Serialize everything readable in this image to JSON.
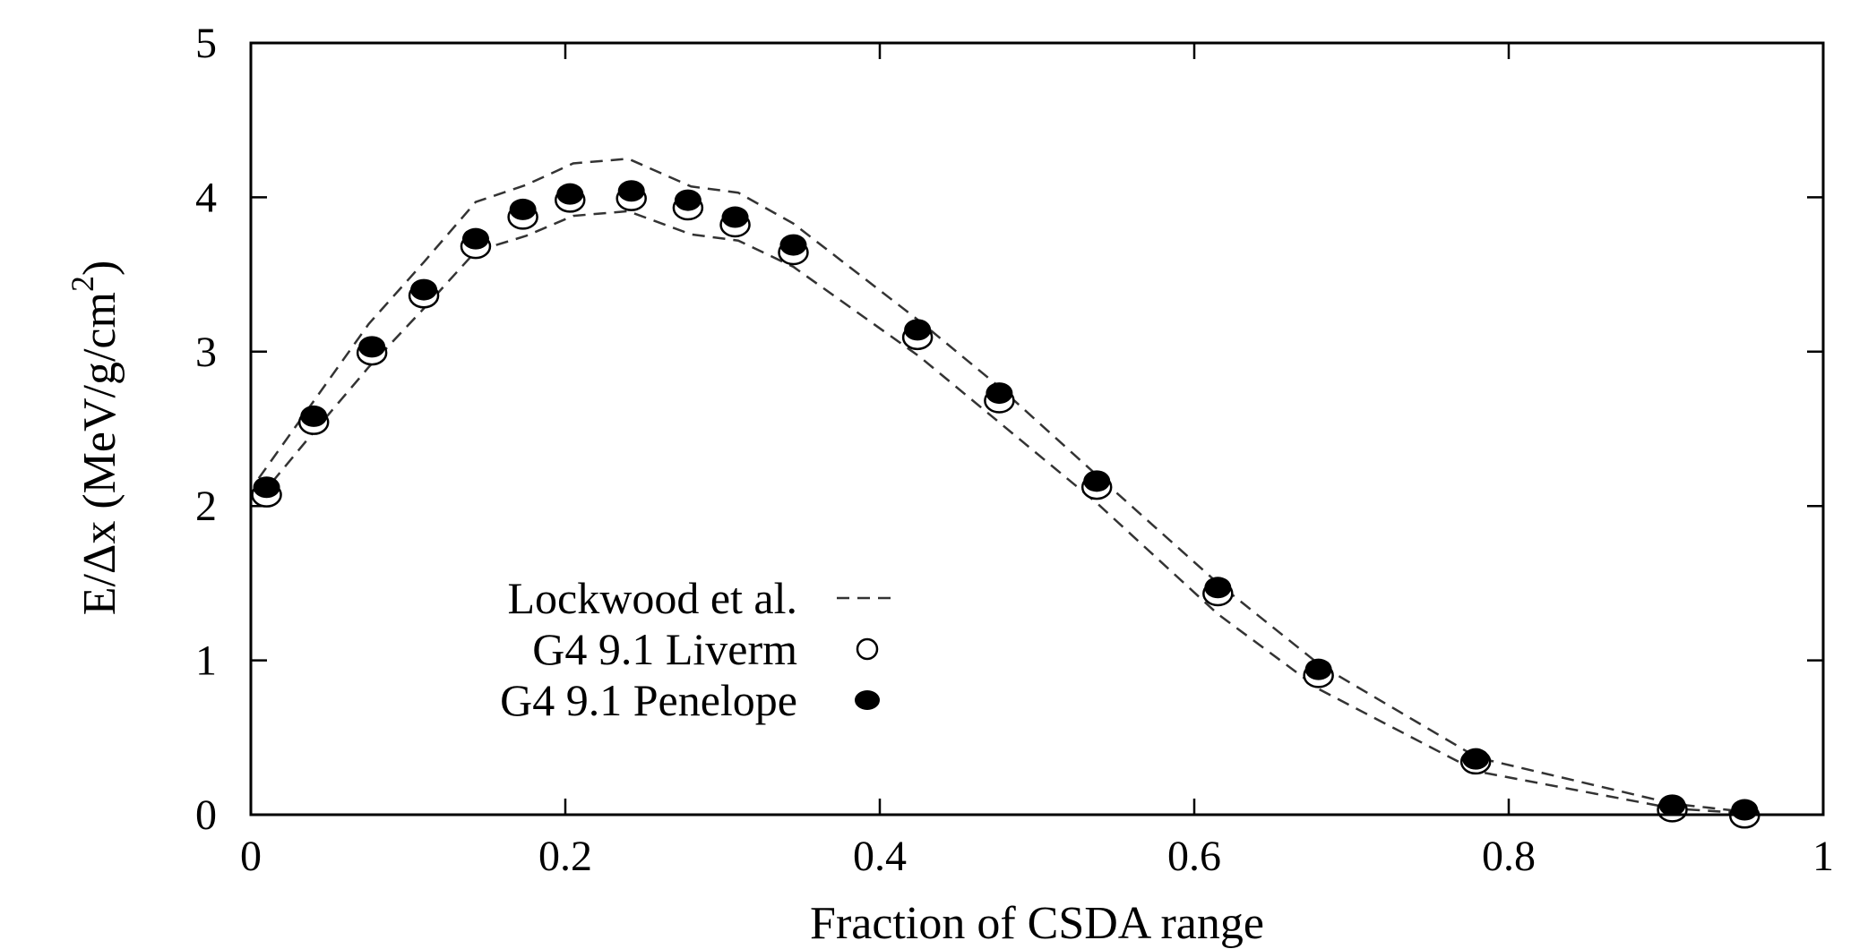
{
  "chart_data": {
    "type": "scatter",
    "xlabel": "Fraction of CSDA range",
    "ylabel_main": "E/Δx (MeV/g/cm",
    "ylabel_sup": "2",
    "ylabel_close": ")",
    "xlim": [
      0,
      1
    ],
    "ylim": [
      0,
      5
    ],
    "xticks": [
      0,
      0.2,
      0.4,
      0.6,
      0.8,
      1
    ],
    "xtick_labels": [
      "0",
      "0.2",
      "0.4",
      "0.6",
      "0.8",
      "1"
    ],
    "yticks": [
      0,
      1,
      2,
      3,
      4,
      5
    ],
    "ytick_labels": [
      "0",
      "1",
      "2",
      "3",
      "4",
      "5"
    ],
    "legend_position": "center-left",
    "series": [
      {
        "name": "Lockwood et al.",
        "style": "dashed-line",
        "color": "#333333",
        "upper": {
          "x": [
            0.005,
            0.04,
            0.075,
            0.11,
            0.143,
            0.175,
            0.205,
            0.24,
            0.28,
            0.31,
            0.345,
            0.425,
            0.475,
            0.538,
            0.615,
            0.68,
            0.78,
            0.905,
            0.95
          ],
          "y": [
            2.18,
            2.68,
            3.18,
            3.58,
            3.97,
            4.08,
            4.22,
            4.25,
            4.07,
            4.03,
            3.83,
            3.2,
            2.78,
            2.2,
            1.5,
            0.97,
            0.37,
            0.07,
            0.02
          ]
        },
        "lower": {
          "x": [
            0.005,
            0.04,
            0.075,
            0.11,
            0.143,
            0.175,
            0.205,
            0.24,
            0.28,
            0.31,
            0.345,
            0.425,
            0.475,
            0.538,
            0.615,
            0.68,
            0.78,
            0.905,
            0.95
          ],
          "y": [
            2.05,
            2.48,
            2.9,
            3.28,
            3.65,
            3.75,
            3.88,
            3.91,
            3.76,
            3.72,
            3.55,
            2.97,
            2.55,
            2.02,
            1.3,
            0.81,
            0.28,
            0.04,
            0.01
          ]
        }
      },
      {
        "name": "G4 9.1 Liverm",
        "style": "open-circle",
        "color": "#000000",
        "x": [
          0.01,
          0.04,
          0.077,
          0.11,
          0.143,
          0.173,
          0.203,
          0.242,
          0.278,
          0.308,
          0.345,
          0.424,
          0.476,
          0.538,
          0.615,
          0.679,
          0.779,
          0.904,
          0.95
        ],
        "y": [
          2.09,
          2.56,
          3.01,
          3.38,
          3.7,
          3.89,
          4.0,
          4.01,
          3.95,
          3.84,
          3.66,
          3.11,
          2.7,
          2.14,
          1.45,
          0.92,
          0.36,
          0.05,
          0.01
        ]
      },
      {
        "name": "G4 9.1 Penelope",
        "style": "filled-circle",
        "color": "#000000",
        "x": [
          0.01,
          0.04,
          0.077,
          0.11,
          0.143,
          0.173,
          0.203,
          0.242,
          0.278,
          0.308,
          0.345,
          0.424,
          0.476,
          0.538,
          0.615,
          0.679,
          0.779,
          0.904,
          0.95
        ],
        "y": [
          2.11,
          2.57,
          3.02,
          3.39,
          3.72,
          3.91,
          4.01,
          4.03,
          3.97,
          3.86,
          3.68,
          3.13,
          2.72,
          2.15,
          1.46,
          0.93,
          0.35,
          0.05,
          0.02
        ]
      }
    ]
  }
}
